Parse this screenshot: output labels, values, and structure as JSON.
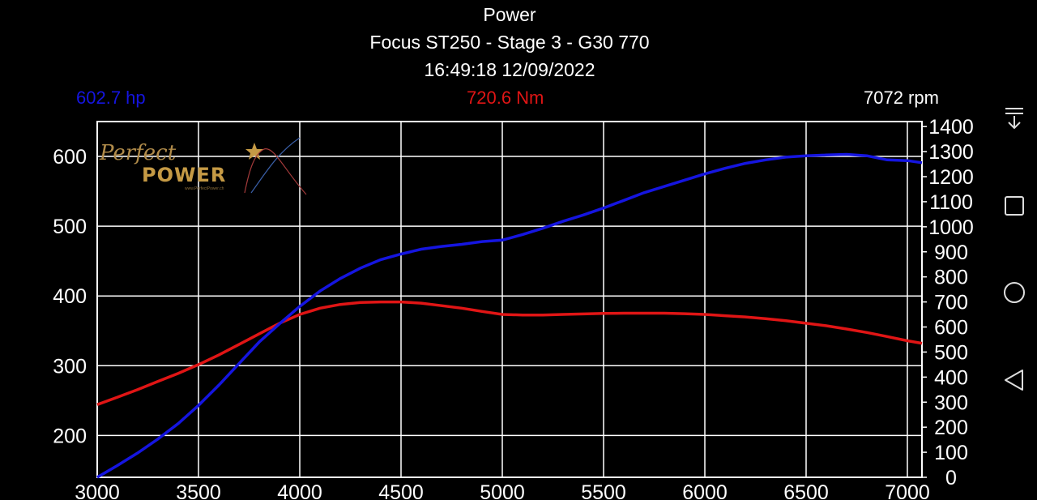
{
  "header": {
    "title": "Power",
    "vehicle": "Focus ST250 - Stage 3 - G30 770",
    "timestamp": "16:49:18 12/09/2022"
  },
  "readouts": {
    "power": "602.7 hp",
    "torque": "720.6 Nm",
    "rpm": "7072 rpm"
  },
  "logo": {
    "line1": "Perfect",
    "line2": "POWER",
    "sub": "www.PerfectPower.ch"
  },
  "navigation": {
    "icons": [
      "notification-pull-icon",
      "square-icon",
      "circle-icon",
      "triangle-back-icon"
    ]
  },
  "colors": {
    "power": "#1515e0",
    "torque": "#e01515",
    "grid": "#ffffff",
    "background": "#000000"
  },
  "chart_data": {
    "type": "line",
    "x_axis": {
      "ticks": [
        3000,
        3500,
        4000,
        4500,
        5000,
        5500,
        6000,
        6500,
        7000
      ],
      "range": [
        3000,
        7072
      ]
    },
    "y_axis_left": {
      "ticks": [
        200,
        300,
        400,
        500,
        600
      ],
      "range": [
        140,
        650
      ]
    },
    "y_axis_right": {
      "ticks": [
        0,
        100,
        200,
        300,
        400,
        500,
        600,
        700,
        800,
        900,
        1000,
        1100,
        1200,
        1300,
        1400
      ],
      "range": [
        0,
        1420
      ]
    },
    "grid": true,
    "series": [
      {
        "axis": "left",
        "x": [
          3000,
          3100,
          3200,
          3300,
          3400,
          3500,
          3600,
          3700,
          3800,
          3900,
          4000,
          4100,
          4200,
          4300,
          4400,
          4500,
          4600,
          4700,
          4800,
          4900,
          5000,
          5100,
          5200,
          5300,
          5400,
          5500,
          5600,
          5700,
          5800,
          5900,
          6000,
          6100,
          6200,
          6300,
          6400,
          6500,
          6600,
          6700,
          6800,
          6900,
          7000,
          7072
        ],
        "values": [
          140,
          157,
          175,
          195,
          217,
          243,
          272,
          303,
          334,
          360,
          385,
          407,
          425,
          440,
          452,
          460,
          467,
          471,
          474,
          478,
          480,
          488,
          497,
          507,
          516,
          526,
          537,
          548,
          557,
          566,
          575,
          583,
          590,
          595,
          599,
          601,
          602,
          603,
          601,
          595,
          594,
          591
        ]
      },
      {
        "axis": "right",
        "x": [
          3000,
          3100,
          3200,
          3300,
          3400,
          3500,
          3600,
          3700,
          3800,
          3900,
          4000,
          4100,
          4200,
          4300,
          4400,
          4500,
          4600,
          4700,
          4800,
          4900,
          5000,
          5100,
          5200,
          5300,
          5400,
          5500,
          5600,
          5700,
          5800,
          5900,
          6000,
          6100,
          6200,
          6300,
          6400,
          6500,
          6600,
          6700,
          6800,
          6900,
          7000,
          7072
        ],
        "values": [
          290,
          320,
          350,
          383,
          415,
          450,
          488,
          530,
          573,
          615,
          650,
          675,
          690,
          698,
          700,
          700,
          695,
          685,
          675,
          662,
          650,
          648,
          648,
          650,
          652,
          654,
          655,
          655,
          655,
          653,
          650,
          645,
          640,
          633,
          625,
          615,
          605,
          592,
          578,
          562,
          545,
          535
        ]
      }
    ]
  }
}
